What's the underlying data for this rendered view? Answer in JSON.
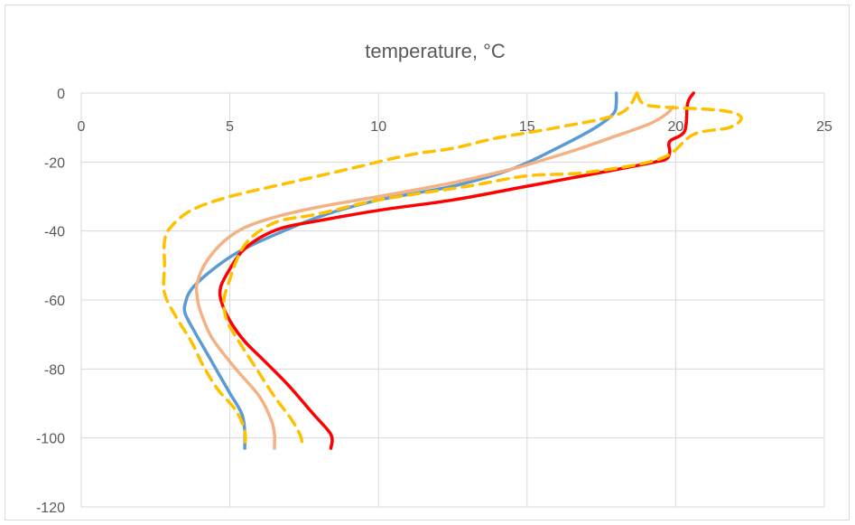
{
  "chart_data": {
    "type": "line",
    "title": "temperature, °C",
    "xlabel": "",
    "ylabel": "",
    "xlim": [
      0,
      25
    ],
    "ylim": [
      -120,
      0
    ],
    "x_ticks": [
      "0",
      "5",
      "10",
      "15",
      "20",
      "25"
    ],
    "y_ticks": [
      "0",
      "-20",
      "-40",
      "-60",
      "-80",
      "-100",
      "-120"
    ],
    "x_tick_values": [
      0,
      5,
      10,
      15,
      20,
      25
    ],
    "y_tick_values": [
      0,
      -20,
      -40,
      -60,
      -80,
      -100,
      -120
    ],
    "grid": true,
    "legend": "none",
    "series": [
      {
        "color": "#5b9bd5",
        "dash": "solid",
        "x": [
          18.0,
          18.0,
          17.9,
          17.3,
          16.0,
          14.5,
          12.5,
          10.0,
          8.3,
          6.8,
          5.3,
          4.3,
          3.7,
          3.5,
          3.5,
          3.8,
          4.2,
          4.6,
          5.0,
          5.4,
          5.5,
          5.5
        ],
        "y": [
          0,
          -3,
          -6,
          -10,
          -16,
          -22,
          -27,
          -31,
          -35,
          -40,
          -46,
          -52,
          -57,
          -61,
          -64,
          -69,
          -75,
          -81,
          -87,
          -93,
          -98,
          -103
        ]
      },
      {
        "color": "#f4b183",
        "dash": "solid",
        "x": [
          19.9,
          19.7,
          19.1,
          17.8,
          16.8,
          15.7,
          14.5,
          12.5,
          10.0,
          8.0,
          6.5,
          5.5,
          4.8,
          4.2,
          3.9,
          3.9,
          4.0,
          4.4,
          5.2,
          6.0,
          6.4,
          6.5,
          6.5
        ],
        "y": [
          -4,
          -6,
          -9,
          -13,
          -16,
          -19,
          -22,
          -26,
          -30,
          -33,
          -36,
          -39,
          -43,
          -49,
          -55,
          -59,
          -63,
          -71,
          -80,
          -88,
          -95,
          -99,
          -103
        ]
      },
      {
        "color": "#ff0000",
        "dash": "solid",
        "x": [
          20.6,
          20.4,
          20.3,
          19.8,
          19.8,
          19.7,
          19.3,
          17.5,
          15.0,
          12.5,
          10.0,
          8.0,
          6.8,
          6.0,
          5.4,
          5.0,
          4.7,
          4.7,
          5.0,
          5.5,
          6.2,
          7.0,
          7.8,
          8.4,
          8.4
        ],
        "y": [
          0,
          -3,
          -11,
          -14,
          -17,
          -19,
          -20,
          -23,
          -27,
          -31,
          -34,
          -37,
          -39,
          -42,
          -46,
          -51,
          -56,
          -60,
          -66,
          -72,
          -78,
          -85,
          -93,
          -99,
          -103
        ]
      },
      {
        "color": "#ffc000",
        "dash": "dashed",
        "x": [
          18.7,
          18.9,
          19.5,
          21.5,
          22.2,
          21.8,
          20.6,
          19.5,
          17.0,
          15.0,
          13.0,
          10.0,
          8.0,
          6.7,
          6.0,
          5.5,
          5.2,
          5.0,
          4.8,
          4.9,
          5.3,
          5.9,
          6.5,
          7.1,
          7.4,
          7.4
        ],
        "y": [
          0,
          -3,
          -4,
          -5,
          -7,
          -10,
          -12,
          -19,
          -23,
          -24,
          -27,
          -31,
          -35,
          -37,
          -40,
          -44,
          -49,
          -54,
          -60,
          -66,
          -72,
          -80,
          -88,
          -95,
          -100,
          -103
        ]
      },
      {
        "color": "#ffc000",
        "dash": "dashed",
        "x": [
          18.7,
          18.1,
          16.0,
          14.0,
          12.5,
          11.0,
          9.0,
          7.0,
          5.0,
          3.7,
          3.0,
          2.8,
          2.8,
          2.8,
          3.2,
          3.7,
          4.1,
          4.6,
          5.2,
          5.5,
          5.5
        ],
        "y": [
          0,
          -6,
          -10,
          -13,
          -16,
          -18,
          -22,
          -26,
          -30,
          -34,
          -39,
          -43,
          -50,
          -58,
          -65,
          -72,
          -79,
          -86,
          -92,
          -98,
          -103
        ]
      }
    ]
  }
}
